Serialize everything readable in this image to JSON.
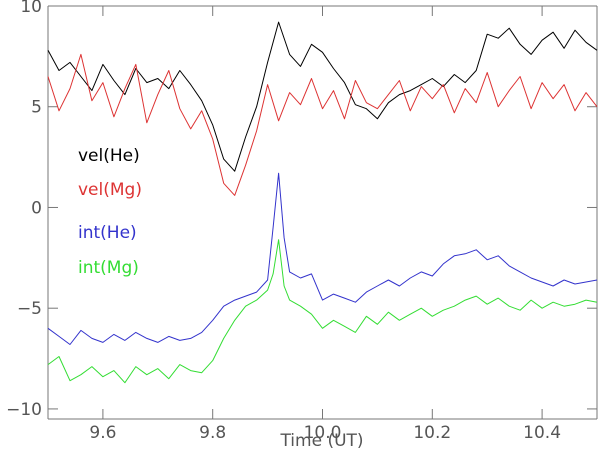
{
  "chart_data": {
    "type": "line",
    "xlabel": "Time (UT)",
    "ylabel": "",
    "xlim": [
      9.5,
      10.5
    ],
    "ylim": [
      -10.5,
      10
    ],
    "xticks": [
      9.6,
      9.8,
      10.0,
      10.2,
      10.4
    ],
    "xtick_labels": [
      "9.6",
      "9.8",
      "10.0",
      "10.2",
      "10.4"
    ],
    "yticks": [
      -10,
      -5,
      0,
      5,
      10
    ],
    "ytick_labels": [
      "−10",
      "−5",
      "0",
      "5",
      "10"
    ],
    "grid": false,
    "legend": "left",
    "series": [
      {
        "name": "vel(He)",
        "color": "#000000",
        "x": [
          9.5,
          9.52,
          9.54,
          9.56,
          9.58,
          9.6,
          9.62,
          9.64,
          9.66,
          9.68,
          9.7,
          9.72,
          9.74,
          9.76,
          9.78,
          9.8,
          9.82,
          9.84,
          9.86,
          9.88,
          9.9,
          9.92,
          9.94,
          9.96,
          9.98,
          10.0,
          10.02,
          10.04,
          10.06,
          10.08,
          10.1,
          10.12,
          10.14,
          10.16,
          10.18,
          10.2,
          10.22,
          10.24,
          10.26,
          10.28,
          10.3,
          10.32,
          10.34,
          10.36,
          10.38,
          10.4,
          10.42,
          10.44,
          10.46,
          10.48,
          10.5
        ],
        "y": [
          7.8,
          6.8,
          7.2,
          6.5,
          5.8,
          7.1,
          6.3,
          5.6,
          6.9,
          6.2,
          6.4,
          5.9,
          6.8,
          6.1,
          5.3,
          4.1,
          2.4,
          1.8,
          3.5,
          5.0,
          7.2,
          9.2,
          7.6,
          7.0,
          8.1,
          7.7,
          6.9,
          6.2,
          5.1,
          4.9,
          4.4,
          5.2,
          5.6,
          5.8,
          6.1,
          6.4,
          6.0,
          6.6,
          6.2,
          6.8,
          8.6,
          8.4,
          8.9,
          8.1,
          7.6,
          8.3,
          8.7,
          7.9,
          8.8,
          8.2,
          7.8
        ]
      },
      {
        "name": "vel(Mg)",
        "color": "#dd3333",
        "x": [
          9.5,
          9.52,
          9.54,
          9.56,
          9.58,
          9.6,
          9.62,
          9.64,
          9.66,
          9.68,
          9.7,
          9.72,
          9.74,
          9.76,
          9.78,
          9.8,
          9.82,
          9.84,
          9.86,
          9.88,
          9.9,
          9.92,
          9.94,
          9.96,
          9.98,
          10.0,
          10.02,
          10.04,
          10.06,
          10.08,
          10.1,
          10.12,
          10.14,
          10.16,
          10.18,
          10.2,
          10.22,
          10.24,
          10.26,
          10.28,
          10.3,
          10.32,
          10.34,
          10.36,
          10.38,
          10.4,
          10.42,
          10.44,
          10.46,
          10.48,
          10.5
        ],
        "y": [
          6.5,
          4.8,
          5.9,
          7.6,
          5.3,
          6.2,
          4.5,
          5.9,
          7.1,
          4.2,
          5.6,
          6.8,
          4.9,
          3.9,
          4.8,
          3.4,
          1.2,
          0.6,
          2.1,
          3.8,
          6.1,
          4.3,
          5.7,
          5.1,
          6.4,
          4.9,
          5.8,
          4.4,
          6.3,
          5.2,
          4.9,
          5.6,
          6.3,
          4.8,
          6.0,
          5.4,
          6.1,
          4.7,
          5.9,
          5.2,
          6.7,
          5.0,
          5.8,
          6.5,
          4.9,
          6.2,
          5.4,
          6.1,
          4.8,
          5.7,
          5.0
        ]
      },
      {
        "name": "int(He)",
        "color": "#3333cc",
        "x": [
          9.5,
          9.52,
          9.54,
          9.56,
          9.58,
          9.6,
          9.62,
          9.64,
          9.66,
          9.68,
          9.7,
          9.72,
          9.74,
          9.76,
          9.78,
          9.8,
          9.82,
          9.84,
          9.86,
          9.88,
          9.9,
          9.91,
          9.92,
          9.93,
          9.94,
          9.96,
          9.98,
          10.0,
          10.02,
          10.04,
          10.06,
          10.08,
          10.1,
          10.12,
          10.14,
          10.16,
          10.18,
          10.2,
          10.22,
          10.24,
          10.26,
          10.28,
          10.3,
          10.32,
          10.34,
          10.36,
          10.38,
          10.4,
          10.42,
          10.44,
          10.46,
          10.48,
          10.5
        ],
        "y": [
          -6.0,
          -6.4,
          -6.8,
          -6.1,
          -6.5,
          -6.7,
          -6.3,
          -6.6,
          -6.2,
          -6.5,
          -6.7,
          -6.4,
          -6.6,
          -6.5,
          -6.2,
          -5.6,
          -4.9,
          -4.6,
          -4.4,
          -4.2,
          -3.6,
          -1.0,
          1.7,
          -1.5,
          -3.2,
          -3.5,
          -3.3,
          -4.6,
          -4.3,
          -4.5,
          -4.7,
          -4.2,
          -3.9,
          -3.6,
          -3.9,
          -3.5,
          -3.2,
          -3.4,
          -2.8,
          -2.4,
          -2.3,
          -2.1,
          -2.6,
          -2.4,
          -2.9,
          -3.2,
          -3.5,
          -3.7,
          -3.9,
          -3.6,
          -3.8,
          -3.7,
          -3.6
        ]
      },
      {
        "name": "int(Mg)",
        "color": "#33dd33",
        "x": [
          9.5,
          9.52,
          9.54,
          9.56,
          9.58,
          9.6,
          9.62,
          9.64,
          9.66,
          9.68,
          9.7,
          9.72,
          9.74,
          9.76,
          9.78,
          9.8,
          9.82,
          9.84,
          9.86,
          9.88,
          9.9,
          9.91,
          9.92,
          9.93,
          9.94,
          9.96,
          9.98,
          10.0,
          10.02,
          10.04,
          10.06,
          10.08,
          10.1,
          10.12,
          10.14,
          10.16,
          10.18,
          10.2,
          10.22,
          10.24,
          10.26,
          10.28,
          10.3,
          10.32,
          10.34,
          10.36,
          10.38,
          10.4,
          10.42,
          10.44,
          10.46,
          10.48,
          10.5
        ],
        "y": [
          -7.8,
          -7.4,
          -8.6,
          -8.3,
          -7.9,
          -8.4,
          -8.1,
          -8.7,
          -7.9,
          -8.3,
          -8.0,
          -8.5,
          -7.8,
          -8.1,
          -8.2,
          -7.6,
          -6.5,
          -5.6,
          -4.9,
          -4.6,
          -4.1,
          -3.3,
          -1.6,
          -3.9,
          -4.6,
          -4.9,
          -5.3,
          -6.0,
          -5.6,
          -5.9,
          -6.2,
          -5.4,
          -5.8,
          -5.2,
          -5.6,
          -5.3,
          -5.0,
          -5.4,
          -5.1,
          -4.9,
          -4.6,
          -4.4,
          -4.8,
          -4.5,
          -4.9,
          -5.1,
          -4.6,
          -5.0,
          -4.7,
          -4.9,
          -4.8,
          -4.6,
          -4.7
        ]
      }
    ]
  }
}
